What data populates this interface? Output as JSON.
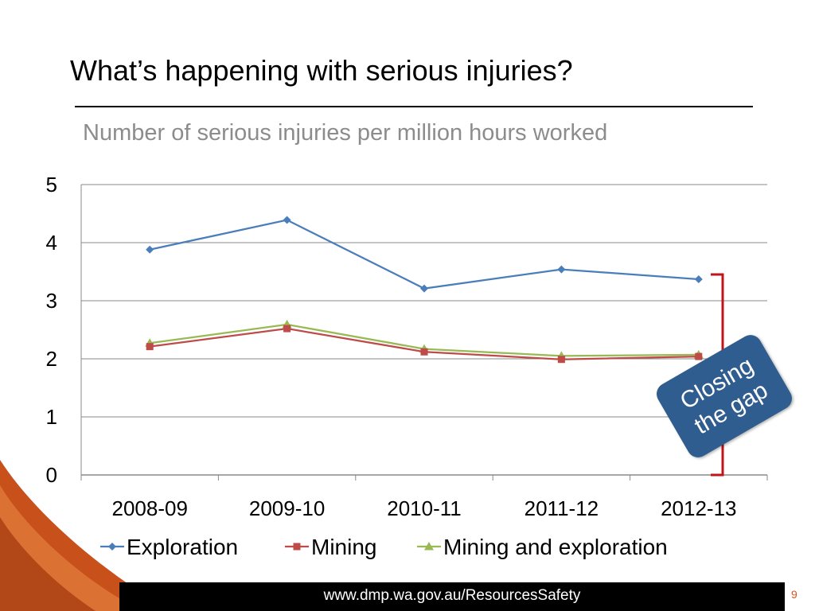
{
  "slide": {
    "title": "What’s happening with serious injuries?",
    "subtitle": "Number of serious injuries per million hours worked",
    "callout": "Closing the gap",
    "footer_url": "www.dmp.wa.gov.au/ResourcesSafety",
    "page_number": "9"
  },
  "colors": {
    "exploration": "#4a7ebb",
    "mining": "#be4b48",
    "mining_and_exploration": "#98b954",
    "bracket": "#c0141b",
    "callout": "#2f5d8f",
    "accent": "#d9541e"
  },
  "chart_data": {
    "type": "line",
    "categories": [
      "2008-09",
      "2009-10",
      "2010-11",
      "2011-12",
      "2012-13"
    ],
    "ylim": [
      0,
      5
    ],
    "yticks": [
      "0",
      "1",
      "2",
      "3",
      "4",
      "5"
    ],
    "grid": true,
    "legend_position": "bottom",
    "series": [
      {
        "name": "Exploration",
        "marker": "diamond",
        "values": [
          3.88,
          4.39,
          3.21,
          3.54,
          3.37
        ]
      },
      {
        "name": "Mining",
        "marker": "square",
        "values": [
          2.21,
          2.52,
          2.12,
          1.99,
          2.04
        ]
      },
      {
        "name": "Mining and exploration",
        "marker": "triangle",
        "values": [
          2.27,
          2.59,
          2.17,
          2.05,
          2.07
        ]
      }
    ]
  }
}
